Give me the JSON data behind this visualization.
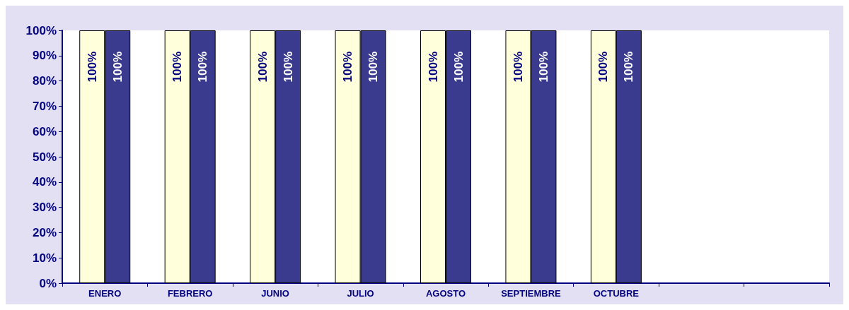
{
  "chart_data": {
    "type": "bar",
    "categories": [
      "ENERO",
      "FEBRERO",
      "JUNIO",
      "JULIO",
      "AGOSTO",
      "SEPTIEMBRE",
      "OCTUBRE",
      null,
      null
    ],
    "series": [
      {
        "color": "#ffffdc",
        "values": [
          100,
          100,
          100,
          100,
          100,
          100,
          100,
          null,
          null
        ],
        "value_labels": [
          "100%",
          "100%",
          "100%",
          "100%",
          "100%",
          "100%",
          "100%",
          null,
          null
        ]
      },
      {
        "color": "#3a3a8e",
        "values": [
          100,
          100,
          100,
          100,
          100,
          100,
          100,
          null,
          null
        ],
        "value_labels": [
          "100%",
          "100%",
          "100%",
          "100%",
          "100%",
          "100%",
          "100%",
          null,
          null
        ]
      }
    ],
    "ylim": [
      0,
      100
    ],
    "yticks": [
      {
        "value": 0,
        "label": "0%"
      },
      {
        "value": 10,
        "label": "10%"
      },
      {
        "value": 20,
        "label": "20%"
      },
      {
        "value": 30,
        "label": "30%"
      },
      {
        "value": 40,
        "label": "40%"
      },
      {
        "value": 50,
        "label": "50%"
      },
      {
        "value": 60,
        "label": "60%"
      },
      {
        "value": 70,
        "label": "70%"
      },
      {
        "value": 80,
        "label": "80%"
      },
      {
        "value": 90,
        "label": "90%"
      },
      {
        "value": 100,
        "label": "100%"
      }
    ],
    "grid": false
  }
}
